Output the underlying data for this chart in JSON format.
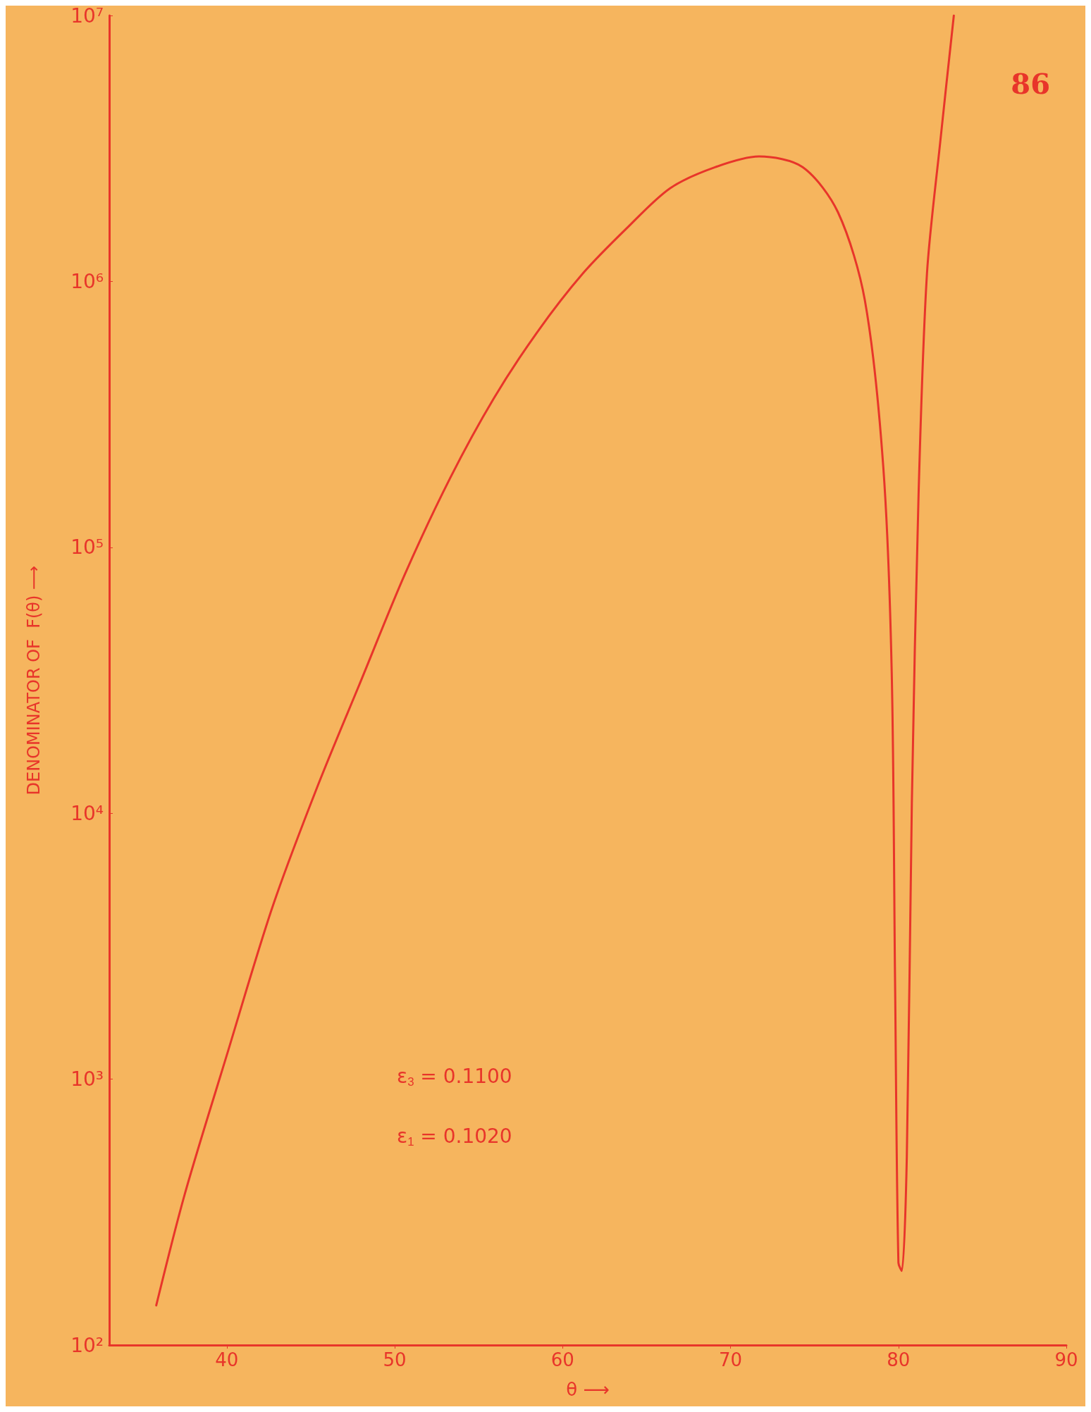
{
  "chart_data": {
    "type": "line",
    "xlabel": "θ ⟶",
    "ylabel": "DENOMINATOR OF  F(θ) ⟶",
    "annotations": [
      "86",
      "ε$_{3}$ = 0.1100",
      "ε$_{1}$ = 0.1020"
    ],
    "x": [
      35.8,
      37.5,
      40,
      42.7,
      45.4,
      48,
      50.6,
      53.3,
      55.9,
      58.5,
      61.2,
      63.8,
      66.4,
      69.1,
      71.7,
      74.3,
      76.4,
      78,
      79.1,
      79.6,
      79.8,
      80,
      80.2,
      80.5,
      80.8,
      81.2,
      81.7,
      82.5,
      83.3
    ],
    "series": [
      {
        "color": "#e8352a",
        "values": [
          141,
          370,
          1230,
          4400,
          12600,
          31600,
          79000,
          182000,
          363000,
          646000,
          1070000,
          1580000,
          2240000,
          2690000,
          2950000,
          2690000,
          1820000,
          850000,
          200000,
          34000,
          2340,
          204,
          190,
          510,
          11000,
          158000,
          1070000,
          3390000,
          10000000
        ]
      }
    ],
    "log": "y",
    "xlim": [
      33,
      90
    ],
    "xticks": [
      40,
      50,
      60,
      70,
      80,
      90
    ],
    "ylim": [
      100,
      10000000
    ],
    "yticks": [
      {
        "value": 100,
        "label": "10²"
      },
      {
        "value": 1000,
        "label": "10³"
      },
      {
        "value": 10000,
        "label": "10⁴"
      },
      {
        "value": 100000,
        "label": "10⁵"
      },
      {
        "value": 1000000,
        "label": "10⁶"
      },
      {
        "value": 10000000,
        "label": "10⁷"
      }
    ],
    "grid": false,
    "marker": "none",
    "line_style": "solid"
  }
}
